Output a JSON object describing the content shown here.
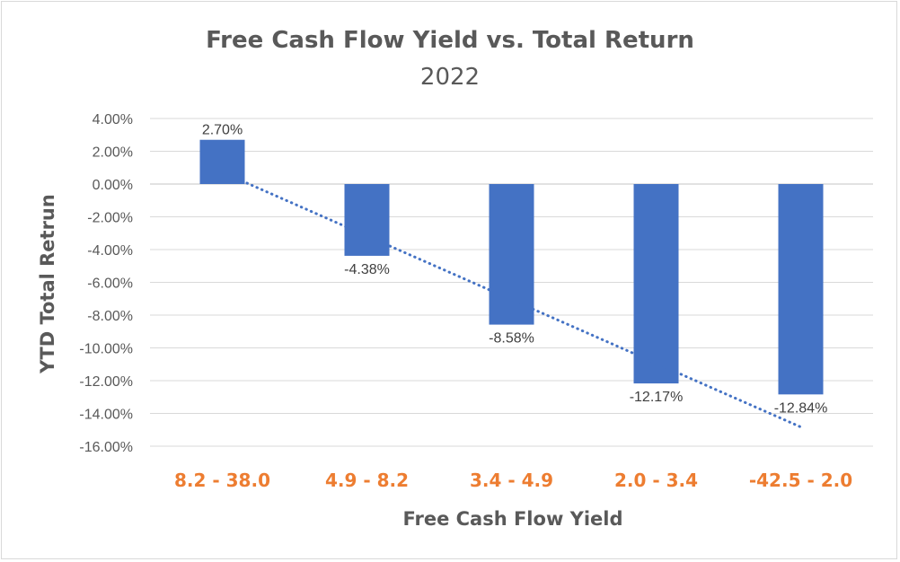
{
  "chart_data": {
    "type": "bar",
    "title": "Free Cash Flow Yield vs. Total Return",
    "subtitle": "2022",
    "xlabel": "Free Cash Flow Yield",
    "ylabel": "YTD Total Retrun",
    "categories": [
      "8.2 - 38.0",
      "4.9 - 8.2",
      "3.4 - 4.9",
      "2.0 - 3.4",
      "-42.5 - 2.0"
    ],
    "values": [
      2.7,
      -4.38,
      -8.58,
      -12.17,
      -12.84
    ],
    "data_labels": [
      "2.70%",
      "-4.38%",
      "-8.58%",
      "-12.17%",
      "-12.84%"
    ],
    "ylim": [
      -16,
      4
    ],
    "yticks": [
      4,
      2,
      0,
      -2,
      -4,
      -6,
      -8,
      -10,
      -12,
      -14,
      -16
    ],
    "ytick_labels": [
      "4.00%",
      "2.00%",
      "0.00%",
      "-2.00%",
      "-4.00%",
      "-6.00%",
      "-8.00%",
      "-10.00%",
      "-12.00%",
      "-14.00%",
      "-16.00%"
    ],
    "grid": true,
    "trendline": {
      "type": "linear",
      "style": "dotted"
    },
    "colors": {
      "bar": "#4472c4",
      "trendline": "#4472c4",
      "category_labels": "#ed7d31",
      "grid": "#d9d9d9",
      "text": "#595959"
    }
  }
}
